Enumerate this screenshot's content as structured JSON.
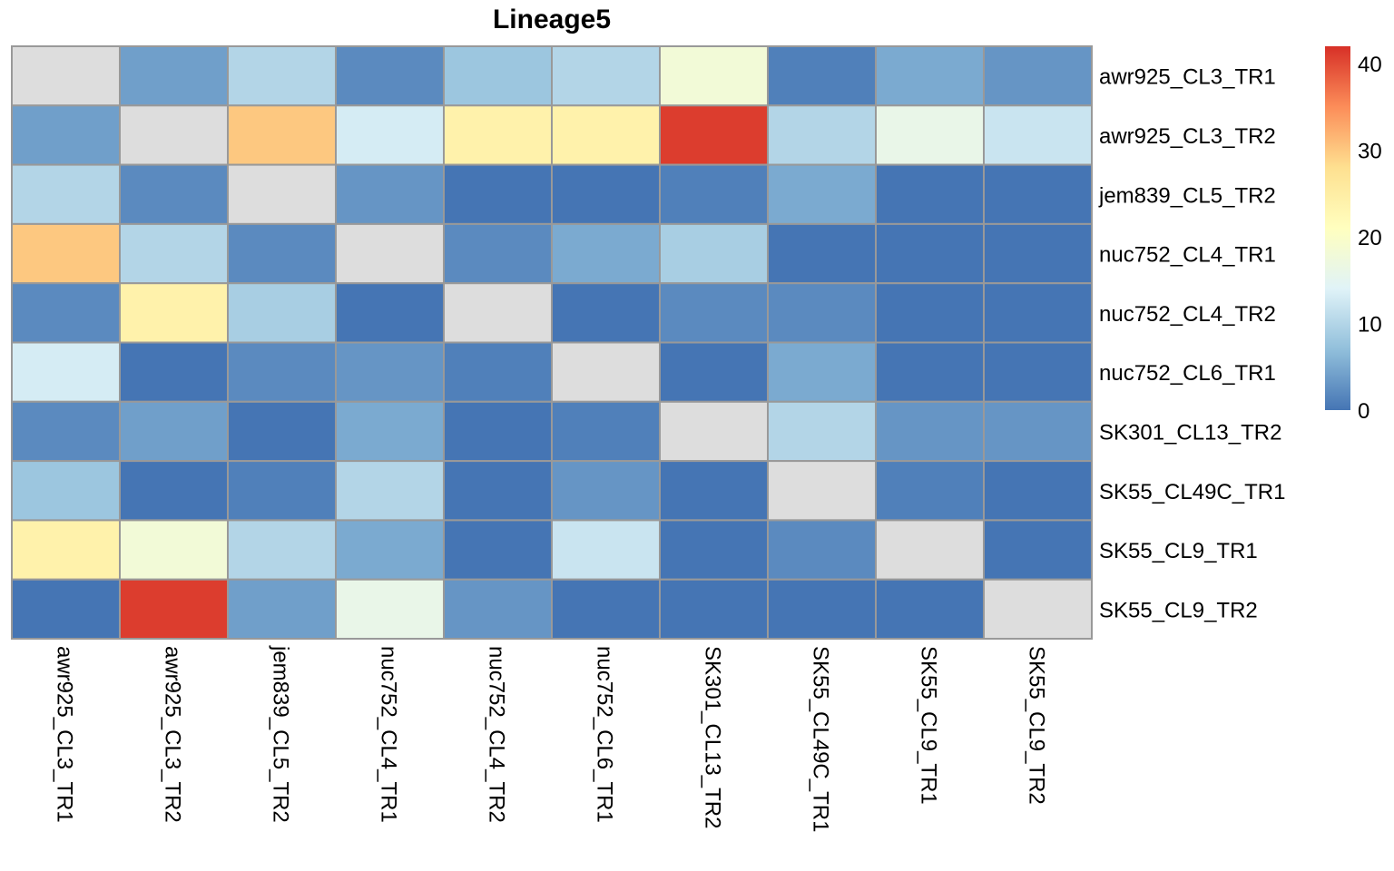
{
  "chart_data": {
    "type": "heatmap",
    "title": "Lineage5",
    "rows": [
      "awr925_CL3_TR1",
      "awr925_CL3_TR2",
      "jem839_CL5_TR2",
      "nuc752_CL4_TR1",
      "nuc752_CL4_TR2",
      "nuc752_CL6_TR1",
      "SK301_CL13_TR2",
      "SK55_CL49C_TR1",
      "SK55_CL9_TR1",
      "SK55_CL9_TR2"
    ],
    "columns": [
      "awr925_CL3_TR1",
      "awr925_CL3_TR2",
      "jem839_CL5_TR2",
      "nuc752_CL4_TR1",
      "nuc752_CL4_TR2",
      "nuc752_CL6_TR1",
      "SK301_CL13_TR2",
      "SK55_CL49C_TR1",
      "SK55_CL9_TR1",
      "SK55_CL9_TR2"
    ],
    "values": [
      [
        null,
        4,
        10,
        2,
        8,
        10,
        18,
        1,
        5,
        3
      ],
      [
        4,
        null,
        30,
        13,
        24,
        24,
        41,
        10,
        16,
        12
      ],
      [
        10,
        2,
        null,
        3,
        0,
        0,
        1,
        5,
        0,
        0
      ],
      [
        30,
        10,
        2,
        null,
        2,
        5,
        9,
        0,
        0,
        0
      ],
      [
        2,
        24,
        9,
        0,
        null,
        0,
        2,
        2,
        0,
        0
      ],
      [
        13,
        0,
        2,
        3,
        1,
        null,
        0,
        5,
        0,
        0
      ],
      [
        2,
        4,
        0,
        5,
        0,
        1,
        null,
        10,
        3,
        3
      ],
      [
        8,
        0,
        1,
        10,
        0,
        3,
        0,
        null,
        1,
        0
      ],
      [
        24,
        18,
        10,
        5,
        0,
        12,
        0,
        2,
        null,
        0
      ],
      [
        0,
        41,
        4,
        16,
        3,
        0,
        0,
        0,
        0,
        null
      ]
    ],
    "diagonal_color": "#DDDDDD",
    "legend": {
      "min": 0,
      "max": 42,
      "ticks": [
        0,
        10,
        20,
        30,
        40
      ],
      "position": "right"
    },
    "color_scale": [
      "#4575B4",
      "#91BFDB",
      "#E0F3F8",
      "#FFFFBF",
      "#FEE090",
      "#FC8D59",
      "#D73027"
    ]
  }
}
